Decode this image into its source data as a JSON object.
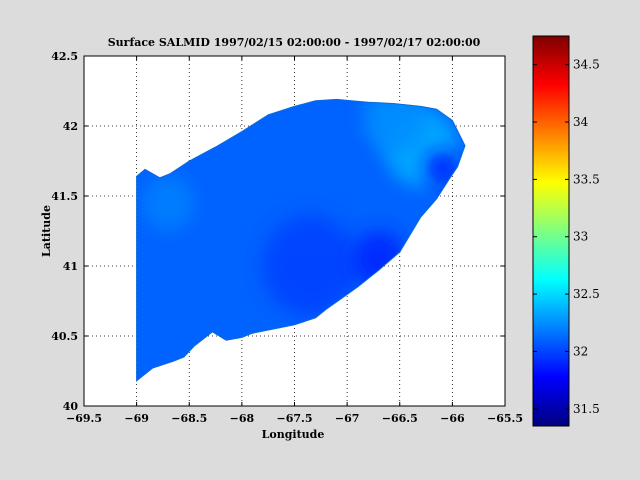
{
  "chart_data": {
    "type": "heatmap",
    "title": "Surface SALMID  1997/02/15 02:00:00 - 1997/02/17 02:00:00",
    "xlabel": "Longitude",
    "ylabel": "Latitude",
    "xlim": [
      -69.5,
      -65.5
    ],
    "ylim": [
      40,
      42.5
    ],
    "xticks": [
      -69.5,
      -69,
      -68.5,
      -68,
      -67.5,
      -67,
      -66.5,
      -66,
      -65.5
    ],
    "yticks": [
      40,
      40.5,
      41,
      41.5,
      42,
      42.5
    ],
    "grid": true,
    "colorbar": {
      "range": [
        31.35,
        34.75
      ],
      "ticks": [
        31.5,
        32,
        32.5,
        33,
        33.5,
        34,
        34.5
      ],
      "colormap": "jet"
    },
    "domain_outline": [
      [
        -69,
        41.64
      ],
      [
        -68.92,
        41.69
      ],
      [
        -68.78,
        41.63
      ],
      [
        -68.68,
        41.66
      ],
      [
        -68.5,
        41.75
      ],
      [
        -68.25,
        41.85
      ],
      [
        -68.0,
        41.96
      ],
      [
        -67.75,
        42.08
      ],
      [
        -67.5,
        42.14
      ],
      [
        -67.3,
        42.18
      ],
      [
        -67.1,
        42.19
      ],
      [
        -66.8,
        42.17
      ],
      [
        -66.55,
        42.16
      ],
      [
        -66.3,
        42.14
      ],
      [
        -66.15,
        42.12
      ],
      [
        -66.0,
        42.04
      ],
      [
        -65.88,
        41.86
      ],
      [
        -65.95,
        41.71
      ],
      [
        -66.03,
        41.62
      ],
      [
        -66.15,
        41.48
      ],
      [
        -66.3,
        41.35
      ],
      [
        -66.5,
        41.1
      ],
      [
        -66.7,
        40.97
      ],
      [
        -66.9,
        40.85
      ],
      [
        -67.05,
        40.77
      ],
      [
        -67.2,
        40.69
      ],
      [
        -67.3,
        40.63
      ],
      [
        -67.5,
        40.58
      ],
      [
        -67.7,
        40.55
      ],
      [
        -67.9,
        40.52
      ],
      [
        -68.0,
        40.49
      ],
      [
        -68.15,
        40.47
      ],
      [
        -68.28,
        40.53
      ],
      [
        -68.45,
        40.43
      ],
      [
        -68.55,
        40.35
      ],
      [
        -68.65,
        40.32
      ],
      [
        -68.85,
        40.27
      ],
      [
        -69,
        40.18
      ]
    ],
    "salinity_field": {
      "background": 32.1,
      "features": [
        {
          "lon": -66.3,
          "lat": 41.85,
          "value": 32.35,
          "radius": 0.35
        },
        {
          "lon": -66.55,
          "lat": 42.05,
          "value": 32.25,
          "radius": 0.3
        },
        {
          "lon": -67.35,
          "lat": 41.0,
          "value": 32.0,
          "radius": 0.45
        },
        {
          "lon": -68.7,
          "lat": 41.45,
          "value": 32.2,
          "radius": 0.25
        },
        {
          "lon": -66.7,
          "lat": 41.05,
          "value": 31.9,
          "radius": 0.25
        },
        {
          "lon": -66.1,
          "lat": 41.7,
          "value": 31.85,
          "radius": 0.15
        }
      ]
    }
  },
  "colors": {
    "background": "#dcdcdc",
    "axes_background": "#ffffff",
    "domain_fill": "#1a90f0"
  }
}
